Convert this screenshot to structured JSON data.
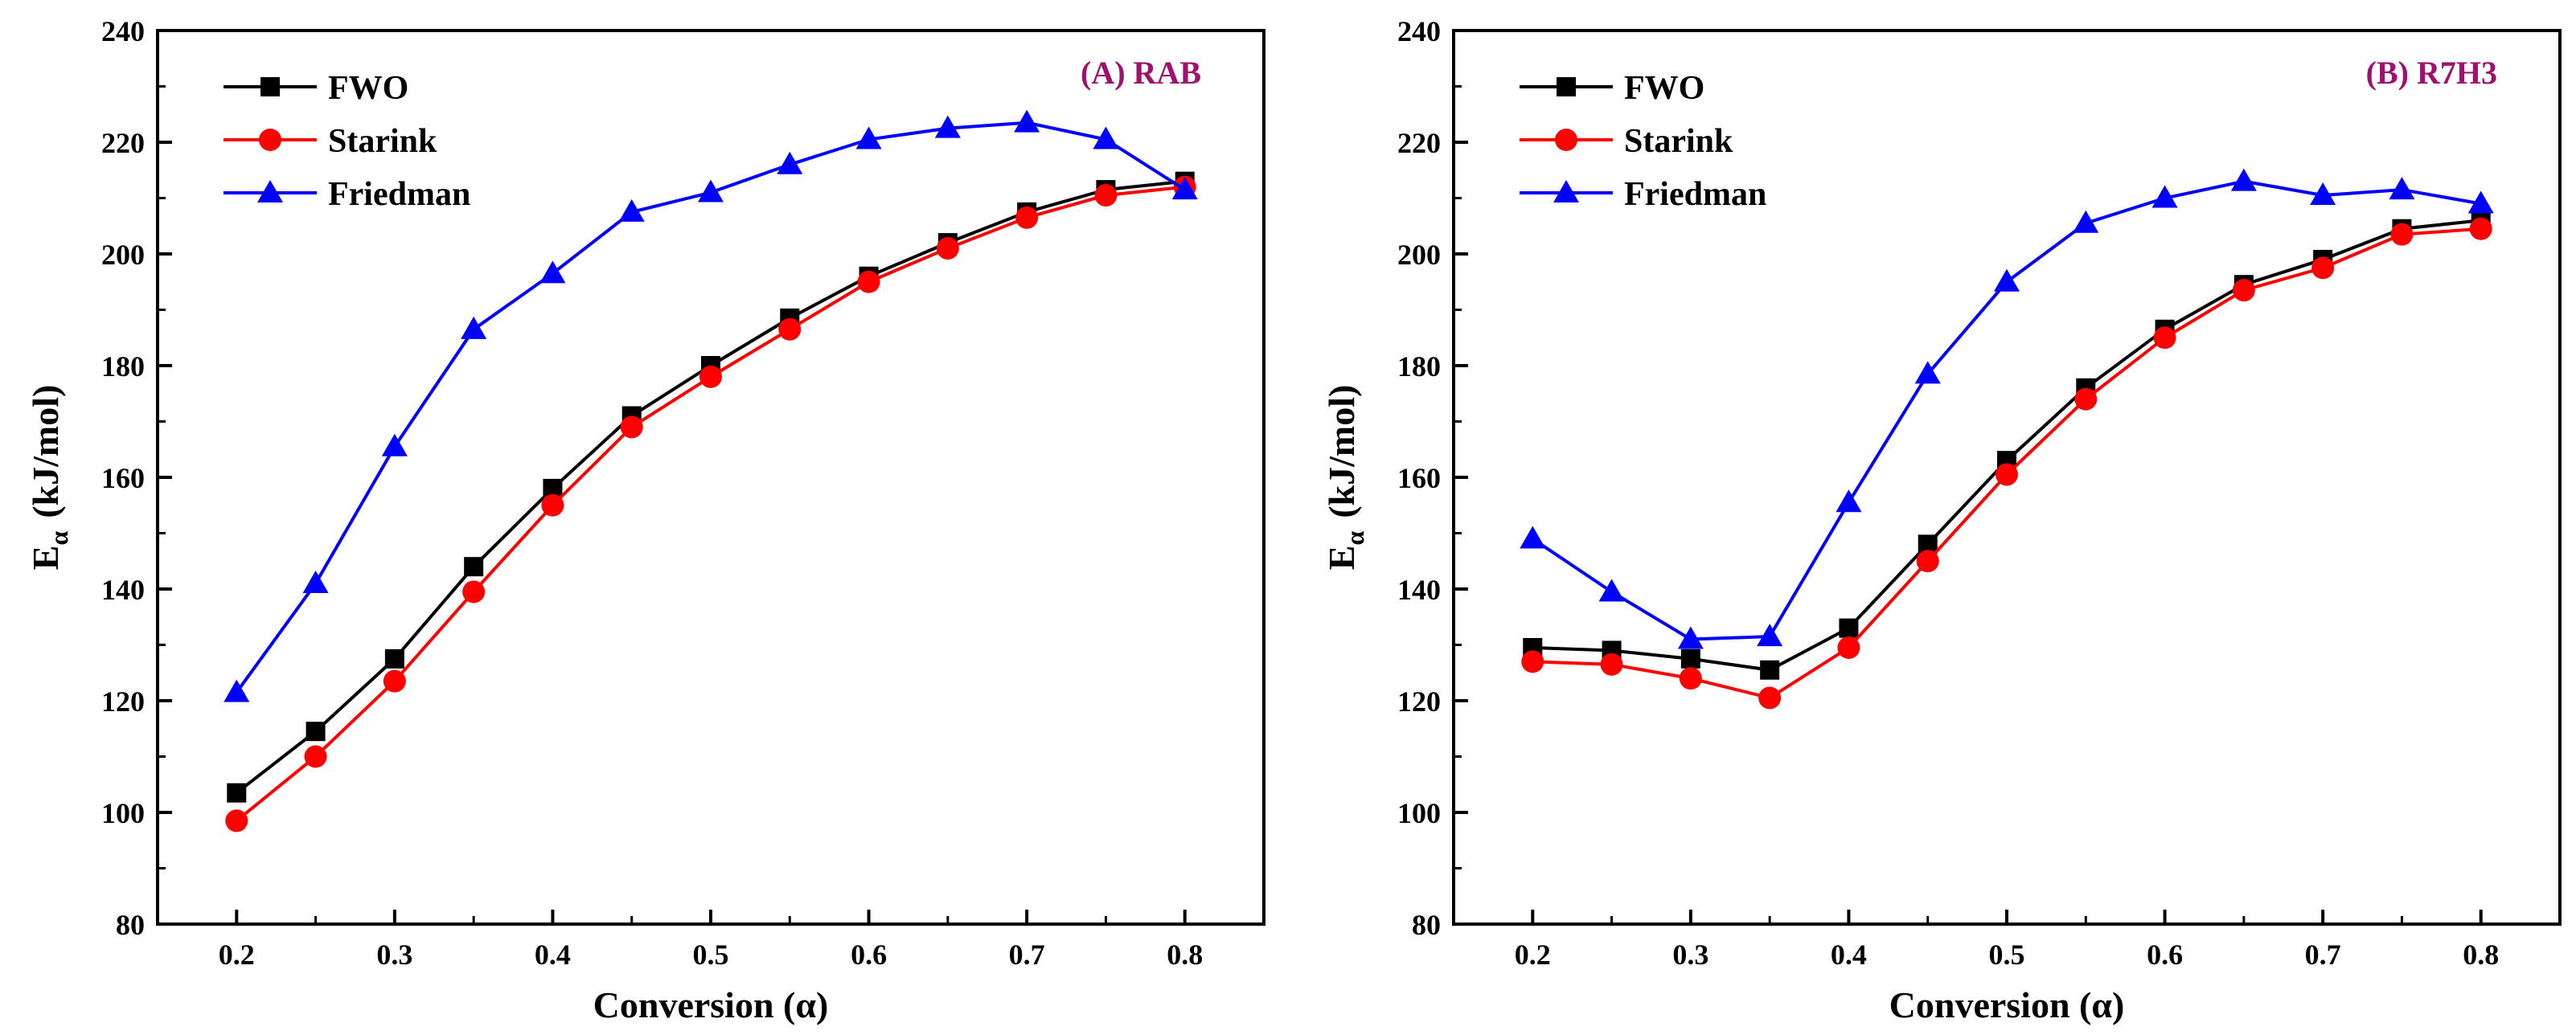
{
  "colors": {
    "FWO": "#000000",
    "Starink": "#ff0000",
    "Friedman": "#0000ff",
    "panel_title": "#a0106e"
  },
  "chart_data": [
    {
      "type": "line",
      "title": "(A) RAB",
      "xlabel": "Conversion (α)",
      "ylabel_main": "E",
      "ylabel_sub": "α",
      "ylabel_rest": "(kJ/mol)",
      "xlim": [
        0.15,
        0.85
      ],
      "ylim": [
        80,
        240
      ],
      "x_ticks": [
        0.2,
        0.3,
        0.4,
        0.5,
        0.6,
        0.7,
        0.8
      ],
      "x_tick_labels": [
        "0.2",
        "0.3",
        "0.4",
        "0.5",
        "0.6",
        "0.7",
        "0.8"
      ],
      "y_ticks": [
        80,
        100,
        120,
        140,
        160,
        180,
        200,
        220,
        240
      ],
      "y_tick_labels": [
        "80",
        "100",
        "120",
        "140",
        "160",
        "180",
        "200",
        "220",
        "240"
      ],
      "x": [
        0.2,
        0.25,
        0.3,
        0.35,
        0.4,
        0.45,
        0.5,
        0.55,
        0.6,
        0.65,
        0.7,
        0.75,
        0.8
      ],
      "series": [
        {
          "name": "FWO",
          "marker": "square",
          "values": [
            103.5,
            114.5,
            127.5,
            144.0,
            158.0,
            171.0,
            180.0,
            188.5,
            196.0,
            202.0,
            207.5,
            211.5,
            213.0
          ]
        },
        {
          "name": "Starink",
          "marker": "circle",
          "values": [
            98.5,
            110.0,
            123.5,
            139.5,
            155.0,
            169.0,
            178.0,
            186.5,
            195.0,
            201.0,
            206.5,
            210.5,
            212.0
          ]
        },
        {
          "name": "Friedman",
          "marker": "triangle",
          "values": [
            121.5,
            141.0,
            165.5,
            186.5,
            196.5,
            207.5,
            211.0,
            216.0,
            220.5,
            222.5,
            223.5,
            220.5,
            211.5
          ]
        }
      ]
    },
    {
      "type": "line",
      "title": "(B) R7H3",
      "xlabel": "Conversion (α)",
      "ylabel_main": "E",
      "ylabel_sub": "α",
      "ylabel_rest": "(kJ/mol)",
      "xlim": [
        0.15,
        0.85
      ],
      "ylim": [
        80,
        240
      ],
      "x_ticks": [
        0.2,
        0.3,
        0.4,
        0.5,
        0.6,
        0.7,
        0.8
      ],
      "x_tick_labels": [
        "0.2",
        "0.3",
        "0.4",
        "0.5",
        "0.6",
        "0.7",
        "0.8"
      ],
      "y_ticks": [
        80,
        100,
        120,
        140,
        160,
        180,
        200,
        220,
        240
      ],
      "y_tick_labels": [
        "80",
        "100",
        "120",
        "140",
        "160",
        "180",
        "200",
        "220",
        "240"
      ],
      "x": [
        0.2,
        0.25,
        0.3,
        0.35,
        0.4,
        0.45,
        0.5,
        0.55,
        0.6,
        0.65,
        0.7,
        0.75,
        0.8
      ],
      "series": [
        {
          "name": "FWO",
          "marker": "square",
          "values": [
            129.5,
            129.0,
            127.5,
            125.5,
            133.0,
            148.0,
            163.0,
            176.0,
            186.5,
            194.5,
            199.0,
            204.5,
            206.0
          ]
        },
        {
          "name": "Starink",
          "marker": "circle",
          "values": [
            127.0,
            126.5,
            124.0,
            120.5,
            129.5,
            145.0,
            160.5,
            174.0,
            185.0,
            193.5,
            197.5,
            203.5,
            204.5
          ]
        },
        {
          "name": "Friedman",
          "marker": "triangle",
          "values": [
            149.0,
            139.5,
            131.0,
            131.5,
            155.5,
            178.5,
            195.0,
            205.5,
            210.0,
            213.0,
            210.5,
            211.5,
            209.0
          ]
        }
      ]
    }
  ]
}
